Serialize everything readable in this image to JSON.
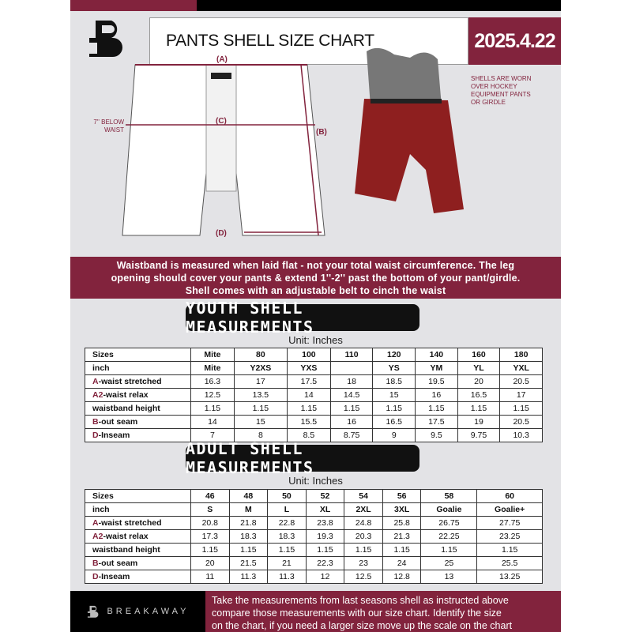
{
  "header": {
    "title": "PANTS SHELL SIZE CHART",
    "date": "2025.4.22"
  },
  "diagram": {
    "label_a": "(A)",
    "label_b": "(B)",
    "label_c": "(C)",
    "label_d": "(D)",
    "below_waist": "7'' BELOW WAIST",
    "shell_note": "SHELLS ARE WORN OVER HOCKEY EQUIPMENT PANTS OR GIRDLE"
  },
  "band_text": [
    "Waistband is measured when laid flat - not your total waist circumference. The leg",
    "opening should cover your pants & extend 1''-2'' past the bottom of your pant/girdle.",
    "Shell comes with an adjustable belt to cinch the waist"
  ],
  "youth": {
    "title": "YOUTH SHELL MEASUREMENTS",
    "unit": "Unit: Inches",
    "rows": [
      {
        "prefix": "",
        "label": "Sizes",
        "values": [
          "Mite",
          "80",
          "100",
          "110",
          "120",
          "140",
          "160",
          "180"
        ]
      },
      {
        "prefix": "",
        "label": "inch",
        "values": [
          "Mite",
          "Y2XS",
          "YXS",
          "",
          "YS",
          "YM",
          "YL",
          "YXL"
        ]
      },
      {
        "prefix": "A",
        "label": "-waist stretched",
        "values": [
          "16.3",
          "17",
          "17.5",
          "18",
          "18.5",
          "19.5",
          "20",
          "20.5"
        ]
      },
      {
        "prefix": "A2",
        "label": "-waist relax",
        "values": [
          "12.5",
          "13.5",
          "14",
          "14.5",
          "15",
          "16",
          "16.5",
          "17"
        ]
      },
      {
        "prefix": "",
        "label": "waistband height",
        "values": [
          "1.15",
          "1.15",
          "1.15",
          "1.15",
          "1.15",
          "1.15",
          "1.15",
          "1.15"
        ]
      },
      {
        "prefix": "B",
        "label": "-out seam",
        "values": [
          "14",
          "15",
          "15.5",
          "16",
          "16.5",
          "17.5",
          "19",
          "20.5"
        ]
      },
      {
        "prefix": "D",
        "label": "-Inseam",
        "values": [
          "7",
          "8",
          "8.5",
          "8.75",
          "9",
          "9.5",
          "9.75",
          "10.3"
        ]
      }
    ]
  },
  "adult": {
    "title": "ADULT SHELL MEASUREMENTS",
    "unit": "Unit: Inches",
    "rows": [
      {
        "prefix": "",
        "label": "Sizes",
        "values": [
          "46",
          "48",
          "50",
          "52",
          "54",
          "56",
          "58",
          "60"
        ]
      },
      {
        "prefix": "",
        "label": "inch",
        "values": [
          "S",
          "M",
          "L",
          "XL",
          "2XL",
          "3XL",
          "Goalie",
          "Goalie+"
        ]
      },
      {
        "prefix": "A",
        "label": "-waist stretched",
        "values": [
          "20.8",
          "21.8",
          "22.8",
          "23.8",
          "24.8",
          "25.8",
          "26.75",
          "27.75"
        ]
      },
      {
        "prefix": "A2",
        "label": "-waist relax",
        "values": [
          "17.3",
          "18.3",
          "18.3",
          "19.3",
          "20.3",
          "21.3",
          "22.25",
          "23.25"
        ]
      },
      {
        "prefix": "",
        "label": "waistband height",
        "values": [
          "1.15",
          "1.15",
          "1.15",
          "1.15",
          "1.15",
          "1.15",
          "1.15",
          "1.15"
        ]
      },
      {
        "prefix": "B",
        "label": "-out seam",
        "values": [
          "20",
          "21.5",
          "21",
          "22.3",
          "23",
          "24",
          "25",
          "25.5"
        ]
      },
      {
        "prefix": "D",
        "label": "-Inseam",
        "values": [
          "11",
          "11.3",
          "11.3",
          "12",
          "12.5",
          "12.8",
          "13",
          "13.25"
        ]
      }
    ]
  },
  "footer": {
    "brand": "BREAKAWAY",
    "text": [
      "Take the measurements from last seasons shell as instructed above",
      "compare those measurements  with our size chart. Identify the size",
      "on the chart, if you need a larger size move up the scale on the chart"
    ]
  },
  "colors": {
    "brand": "#82233d",
    "black": "#000000",
    "background": "#e3e3e6"
  }
}
